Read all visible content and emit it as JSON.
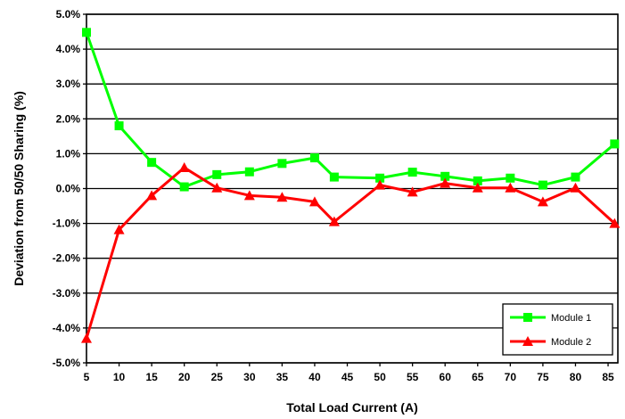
{
  "chart_data": {
    "type": "line",
    "title": "",
    "xlabel": "Total Load Current (A)",
    "ylabel": "Deviation from 50/50  Sharing (%)",
    "x_ticks": [
      "5",
      "10",
      "15",
      "20",
      "25",
      "30",
      "35",
      "40",
      "45",
      "50",
      "55",
      "60",
      "65",
      "70",
      "75",
      "80",
      "85"
    ],
    "y_ticks": [
      "5.0%",
      "4.0%",
      "3.0%",
      "2.0%",
      "1.0%",
      "0.0%",
      "-1.0%",
      "-2.0%",
      "-3.0%",
      "-4.0%",
      "-5.0%"
    ],
    "xlim": [
      5,
      86.5
    ],
    "ylim": [
      -5,
      5
    ],
    "grid": "horizontal",
    "legend_position": "bottom-right",
    "series": [
      {
        "name": "Module 1",
        "color": "#00ff00",
        "marker": "square",
        "x": [
          5,
          10,
          15,
          20,
          25,
          30,
          35,
          40,
          43,
          50,
          55,
          60,
          65,
          70,
          75,
          80,
          86
        ],
        "y": [
          4.48,
          1.8,
          0.75,
          0.05,
          0.4,
          0.48,
          0.72,
          0.88,
          0.33,
          0.3,
          0.47,
          0.35,
          0.22,
          0.3,
          0.1,
          0.33,
          1.28
        ]
      },
      {
        "name": "Module 2",
        "color": "#ff0000",
        "marker": "triangle",
        "x": [
          5,
          10,
          15,
          20,
          25,
          30,
          35,
          40,
          43,
          50,
          55,
          60,
          65,
          70,
          75,
          80,
          86
        ],
        "y": [
          -4.3,
          -1.18,
          -0.2,
          0.6,
          0.02,
          -0.2,
          -0.25,
          -0.38,
          -0.95,
          0.1,
          -0.1,
          0.15,
          0.02,
          0.02,
          -0.38,
          0.02,
          -1.0
        ]
      }
    ]
  }
}
